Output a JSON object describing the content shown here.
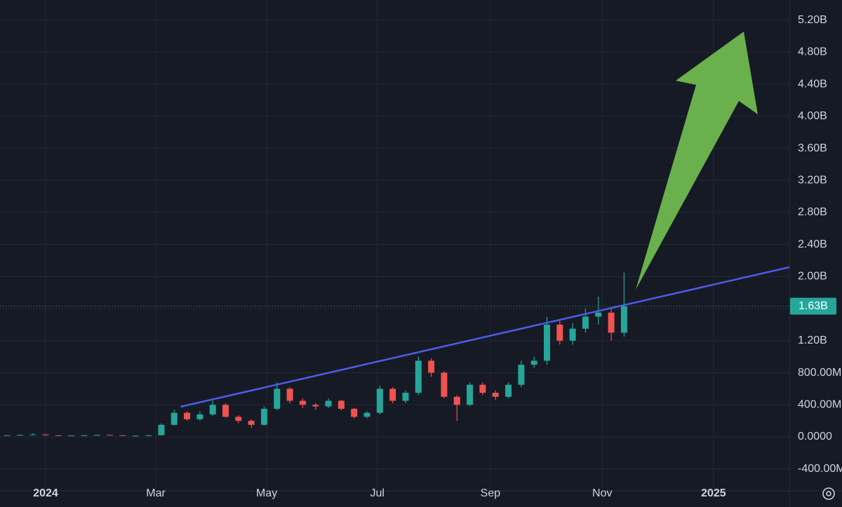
{
  "chart_data": {
    "type": "candlestick",
    "categories": [
      null,
      null,
      null,
      null,
      null,
      null,
      null,
      null,
      null,
      null,
      null,
      null,
      null,
      null,
      null,
      null,
      null,
      null,
      null,
      null,
      null,
      null,
      null,
      null,
      null,
      null,
      null,
      null,
      null,
      null,
      null,
      null,
      null,
      null,
      null,
      null,
      null,
      null,
      null,
      null,
      null,
      null,
      null,
      null,
      null,
      null,
      null,
      null,
      null
    ],
    "open": [
      15,
      20,
      25,
      30,
      20,
      15,
      18,
      20,
      25,
      20,
      15,
      15,
      20,
      150,
      300,
      220,
      280,
      400,
      250,
      200,
      150,
      350,
      600,
      450,
      400,
      380,
      450,
      350,
      250,
      300,
      600,
      450,
      550,
      950,
      800,
      500,
      400,
      650,
      550,
      500,
      650,
      900,
      950,
      1400,
      1200,
      1350,
      1500,
      1550,
      1300
    ],
    "high": [
      22,
      28,
      42,
      32,
      22,
      20,
      22,
      28,
      28,
      22,
      18,
      22,
      170,
      340,
      320,
      320,
      450,
      420,
      270,
      220,
      380,
      680,
      620,
      480,
      420,
      480,
      460,
      360,
      320,
      640,
      620,
      580,
      1000,
      980,
      820,
      520,
      680,
      680,
      580,
      680,
      950,
      1000,
      1500,
      1450,
      1420,
      1600,
      1750,
      1600,
      2050
    ],
    "low": [
      12,
      16,
      22,
      18,
      12,
      12,
      15,
      18,
      18,
      13,
      12,
      12,
      18,
      140,
      200,
      200,
      260,
      240,
      170,
      110,
      140,
      330,
      420,
      360,
      340,
      360,
      330,
      230,
      230,
      280,
      420,
      420,
      520,
      750,
      480,
      200,
      380,
      520,
      460,
      480,
      620,
      860,
      900,
      1150,
      1150,
      1300,
      1400,
      1200,
      1250
    ],
    "close": [
      20,
      25,
      30,
      20,
      15,
      18,
      20,
      25,
      20,
      15,
      15,
      20,
      150,
      300,
      220,
      280,
      400,
      250,
      200,
      150,
      350,
      600,
      450,
      400,
      380,
      450,
      350,
      250,
      300,
      600,
      450,
      550,
      950,
      800,
      500,
      400,
      650,
      550,
      500,
      650,
      900,
      950,
      1400,
      1200,
      1350,
      1500,
      1550,
      1300,
      1630
    ],
    "up_color": "#26a69a",
    "down_color": "#ef5350",
    "xlim": [
      -0.55,
      60.86
    ],
    "xticks": [
      {
        "value": 3,
        "label": "2024"
      },
      {
        "value": 11.57,
        "label": "Mar"
      },
      {
        "value": 20.2,
        "label": "May"
      },
      {
        "value": 28.8,
        "label": "Jul"
      },
      {
        "value": 37.6,
        "label": "Sep"
      },
      {
        "value": 46.3,
        "label": "Nov"
      },
      {
        "value": 54.96,
        "label": "2025"
      }
    ],
    "ylim": [
      -674,
      5451
    ],
    "yticks": [
      {
        "value": -400,
        "label": "-400.00M"
      },
      {
        "value": 0,
        "label": "0.0000"
      },
      {
        "value": 400,
        "label": "400.00M"
      },
      {
        "value": 800,
        "label": "800.00M"
      },
      {
        "value": 1200,
        "label": "1.20B"
      },
      {
        "value": 1600,
        "label": "1.60B"
      },
      {
        "value": 2000,
        "label": "2.00B"
      },
      {
        "value": 2400,
        "label": "2.40B"
      },
      {
        "value": 2800,
        "label": "2.80B"
      },
      {
        "value": 3200,
        "label": "3.20B"
      },
      {
        "value": 3600,
        "label": "3.60B"
      },
      {
        "value": 4000,
        "label": "4.00B"
      },
      {
        "value": 4400,
        "label": "4.40B"
      },
      {
        "value": 4800,
        "label": "4.80B"
      },
      {
        "value": 5200,
        "label": "5.20B"
      }
    ],
    "grid": true,
    "last_price": {
      "value": 1630,
      "label": "1.63B",
      "color": "#26a69a"
    },
    "trendline": {
      "x": [
        13.5,
        60.86
      ],
      "y": [
        376,
        2117
      ],
      "color": "#4a5ee8"
    }
  }
}
